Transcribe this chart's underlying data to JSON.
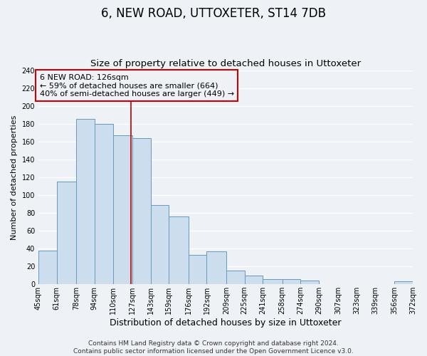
{
  "title": "6, NEW ROAD, UTTOXETER, ST14 7DB",
  "subtitle": "Size of property relative to detached houses in Uttoxeter",
  "xlabel": "Distribution of detached houses by size in Uttoxeter",
  "ylabel": "Number of detached properties",
  "bar_values": [
    38,
    115,
    185,
    180,
    167,
    164,
    89,
    76,
    33,
    37,
    15,
    10,
    6,
    6,
    4,
    0,
    0,
    0,
    0,
    3
  ],
  "bar_edges": [
    45,
    61,
    78,
    94,
    110,
    127,
    143,
    159,
    176,
    192,
    209,
    225,
    241,
    258,
    274,
    290,
    307,
    323,
    339,
    356,
    372
  ],
  "tick_labels": [
    "45sqm",
    "61sqm",
    "78sqm",
    "94sqm",
    "110sqm",
    "127sqm",
    "143sqm",
    "159sqm",
    "176sqm",
    "192sqm",
    "209sqm",
    "225sqm",
    "241sqm",
    "258sqm",
    "274sqm",
    "290sqm",
    "307sqm",
    "323sqm",
    "339sqm",
    "356sqm",
    "372sqm"
  ],
  "bar_color": "#ccdded",
  "bar_edge_color": "#6699bb",
  "vline_x": 126,
  "vline_color": "#bb0000",
  "annotation_title": "6 NEW ROAD: 126sqm",
  "annotation_line1": "← 59% of detached houses are smaller (664)",
  "annotation_line2": "40% of semi-detached houses are larger (449) →",
  "annotation_box_color": "#cc0000",
  "ylim": [
    0,
    240
  ],
  "yticks": [
    0,
    20,
    40,
    60,
    80,
    100,
    120,
    140,
    160,
    180,
    200,
    220,
    240
  ],
  "footer_line1": "Contains HM Land Registry data © Crown copyright and database right 2024.",
  "footer_line2": "Contains public sector information licensed under the Open Government Licence v3.0.",
  "background_color": "#eef2f7",
  "grid_color": "#ffffff",
  "title_fontsize": 12,
  "subtitle_fontsize": 9.5,
  "xlabel_fontsize": 9,
  "ylabel_fontsize": 8,
  "tick_fontsize": 7,
  "footer_fontsize": 6.5,
  "ann_fontsize": 8
}
